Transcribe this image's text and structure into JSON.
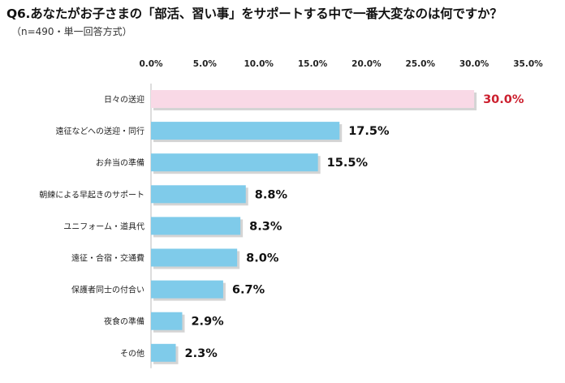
{
  "header": {
    "title": "Q6.あなたがお子さまの「部活、習い事」をサポートする中で一番大変なのは何ですか？",
    "subtitle": "（n=490・単一回答方式）"
  },
  "colors": {
    "highlight_bar": "#f9d9e6",
    "bar": "#7fcbea",
    "highlight_label": "#cc1f2e",
    "label": "#111111"
  },
  "chart_data": {
    "type": "bar",
    "orientation": "horizontal",
    "title": "Q6.あなたがお子さまの「部活、習い事」をサポートする中で一番大変なのは何ですか？",
    "subtitle": "（n=490・単一回答方式）",
    "categories": [
      "日々の送迎",
      "遠征などへの送迎・同行",
      "お弁当の準備",
      "朝練による早起きのサポート",
      "ユニフォーム・道具代",
      "遠征・合宿・交通費",
      "保護者同士の付合い",
      "夜食の準備",
      "その他"
    ],
    "values": [
      30.0,
      17.5,
      15.5,
      8.8,
      8.3,
      8.0,
      6.7,
      2.9,
      2.3
    ],
    "value_labels": [
      "30.0%",
      "17.5%",
      "15.5%",
      "8.8%",
      "8.3%",
      "8.0%",
      "6.7%",
      "2.9%",
      "2.3%"
    ],
    "highlight_index": 0,
    "xlim": [
      0,
      35
    ],
    "ticks": [
      0,
      5,
      10,
      15,
      20,
      25,
      30,
      35
    ],
    "tick_labels": [
      "0.0%",
      "5.0%",
      "10.0%",
      "15.0%",
      "20.0%",
      "25.0%",
      "30.0%",
      "35.0%"
    ],
    "axis_position": "top",
    "grid": false,
    "legend": "none"
  }
}
